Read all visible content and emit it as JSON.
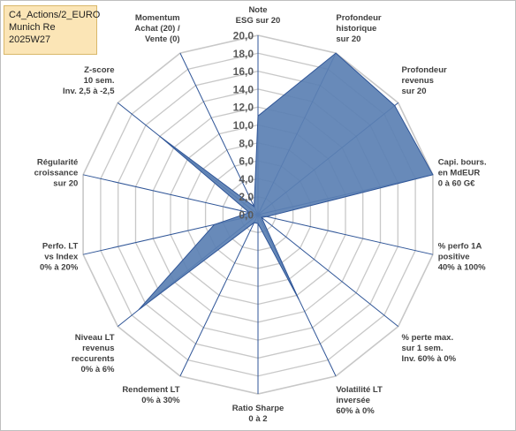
{
  "info": {
    "line1": "C4_Actions/2_EURO",
    "line2": "Munich Re",
    "line3": "2025W27"
  },
  "chart_data": {
    "type": "radar",
    "title": "",
    "rmin": 0,
    "rmax": 20,
    "tick_step": 2,
    "tick_labels": [
      "0,0",
      "2,0",
      "4,0",
      "6,0",
      "8,0",
      "10,0",
      "12,0",
      "14,0",
      "16,0",
      "18,0",
      "20,0"
    ],
    "gridlines": true,
    "legend": "none",
    "fill_color": "#5b80b3",
    "line_color": "#2f5597",
    "axes": [
      {
        "label": [
          "Note",
          "ESG sur 20"
        ],
        "value": 11
      },
      {
        "label": [
          "Profondeur",
          "historique",
          "sur 20"
        ],
        "value": 20
      },
      {
        "label": [
          "Profondeur",
          "revenus",
          "sur 20"
        ],
        "value": 19.5
      },
      {
        "label": [
          "Capi. bours.",
          "en MdEUR",
          "0 à 60 G€"
        ],
        "value": 20
      },
      {
        "label": [
          "% perfo 1A",
          "positive",
          "40% à 100%"
        ],
        "value": 1
      },
      {
        "label": [
          "% perte max.",
          "sur 1 sem.",
          "Inv. 60% à 0%"
        ],
        "value": 0.5
      },
      {
        "label": [
          "Volatilité LT",
          "inversée",
          "60% à 0%"
        ],
        "value": 10.5
      },
      {
        "label": [
          "Ratio Sharpe",
          "0 à 2"
        ],
        "value": 1
      },
      {
        "label": [
          "Rendement LT",
          "0% à 30%"
        ],
        "value": 1
      },
      {
        "label": [
          "Niveau LT",
          "revenus",
          "reccurents",
          "0% à 6%"
        ],
        "value": 17
      },
      {
        "label": [
          "Perfo. LT",
          "vs Index",
          "0% à 20%"
        ],
        "value": 5
      },
      {
        "label": [
          "Régularité",
          "croissance",
          "sur 20"
        ],
        "value": 1
      },
      {
        "label": [
          "Z-score",
          "10 sem.",
          "Inv. 2,5 à -2,5"
        ],
        "value": 14
      },
      {
        "label": [
          "Momentum",
          "Achat (20) /",
          "Vente (0)"
        ],
        "value": 1
      }
    ]
  }
}
